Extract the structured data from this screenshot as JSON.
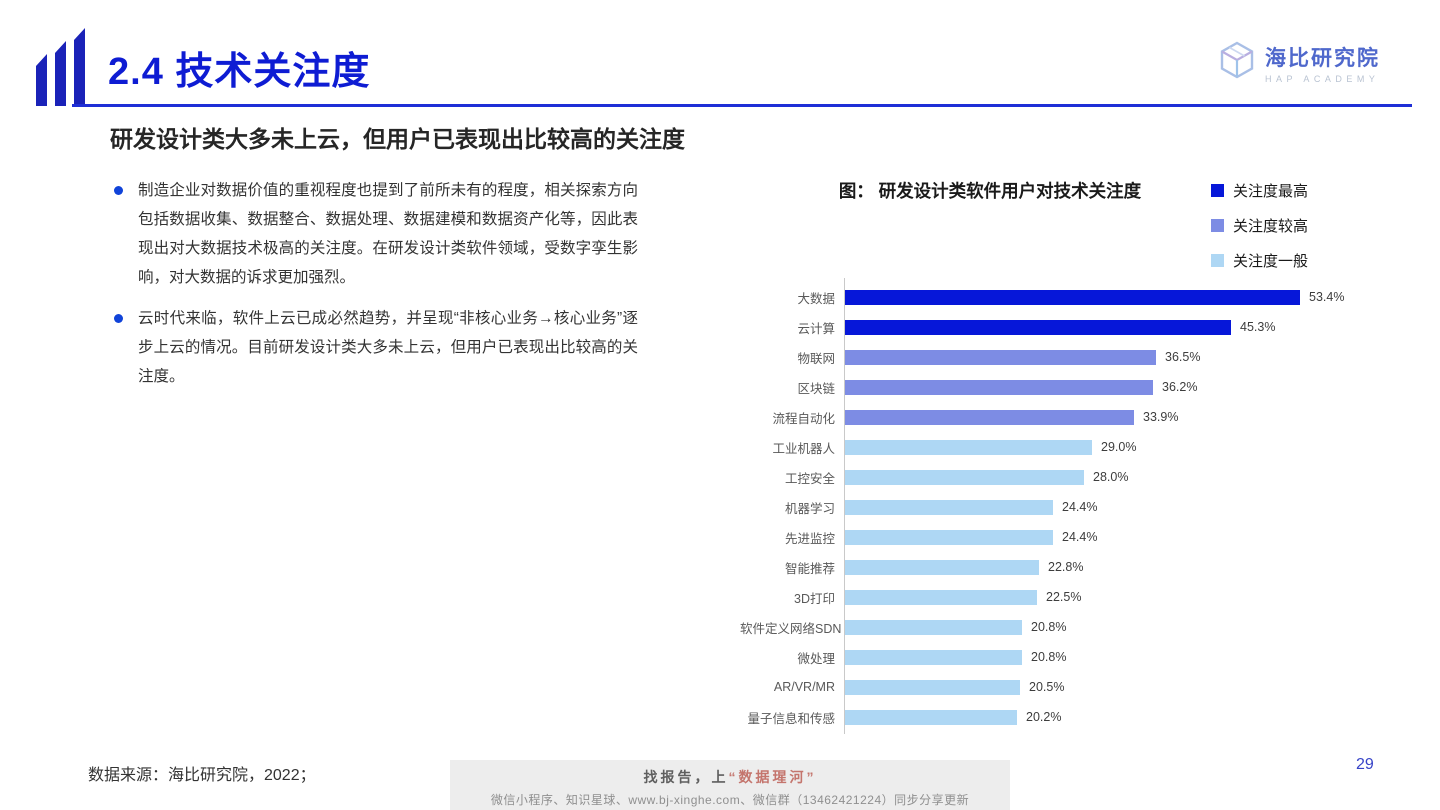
{
  "header": {
    "title": "2.4 技术关注度",
    "logo_name": "海比研究院",
    "logo_subtitle": "HAP ACADEMY"
  },
  "headline": "研发设计类大多未上云，但用户已表现出比较高的关注度",
  "bullets": [
    "制造企业对数据价值的重视程度也提到了前所未有的程度，相关探索方向包括数据收集、数据整合、数据处理、数据建模和数据资产化等，因此表现出对大数据技术极高的关注度。在研发设计类软件领域，受数字孪生影响，对大数据的诉求更加强烈。",
    "云时代来临，软件上云已成必然趋势，并呈现“非核心业务→核心业务”逐步上云的情况。目前研发设计类大多未上云，但用户已表现出比较高的关注度。"
  ],
  "chart": {
    "title": "图： 研发设计类软件用户对技术关注度",
    "legend": [
      {
        "label": "关注度最高",
        "color": "#0617d9"
      },
      {
        "label": "关注度较高",
        "color": "#7d8ce4"
      },
      {
        "label": "关注度一般",
        "color": "#aed7f4"
      }
    ]
  },
  "chart_data": {
    "type": "bar",
    "orientation": "horizontal",
    "title": "图： 研发设计类软件用户对技术关注度",
    "xlabel": "",
    "ylabel": "",
    "xlim": [
      0,
      60
    ],
    "grid": false,
    "legend_position": "top-right",
    "categories": [
      "大数据",
      "云计算",
      "物联网",
      "区块链",
      "流程自动化",
      "工业机器人",
      "工控安全",
      "机器学习",
      "先进监控",
      "智能推荐",
      "3D打印",
      "软件定义网络SDN",
      "微处理",
      "AR/VR/MR",
      "量子信息和传感"
    ],
    "values": [
      53.4,
      45.3,
      36.5,
      36.2,
      33.9,
      29.0,
      28.0,
      24.4,
      24.4,
      22.8,
      22.5,
      20.8,
      20.8,
      20.5,
      20.2
    ],
    "value_labels": [
      "53.4%",
      "45.3%",
      "36.5%",
      "36.2%",
      "33.9%",
      "29.0%",
      "28.0%",
      "24.4%",
      "24.4%",
      "22.8%",
      "22.5%",
      "20.8%",
      "20.8%",
      "20.5%",
      "20.2%"
    ],
    "levels": [
      0,
      0,
      1,
      1,
      1,
      2,
      2,
      2,
      2,
      2,
      2,
      2,
      2,
      2,
      2
    ],
    "level_names": [
      "关注度最高",
      "关注度较高",
      "关注度一般"
    ]
  },
  "footer": {
    "source": "数据来源：海比研究院，2022；",
    "promo_prefix": "找报告，上",
    "promo_brand": "“数据瑆河”",
    "promo_detail": "微信小程序、知识星球、www.bj-xinghe.com、微信群（13462421224）同步分享更新",
    "page_number": "29"
  }
}
